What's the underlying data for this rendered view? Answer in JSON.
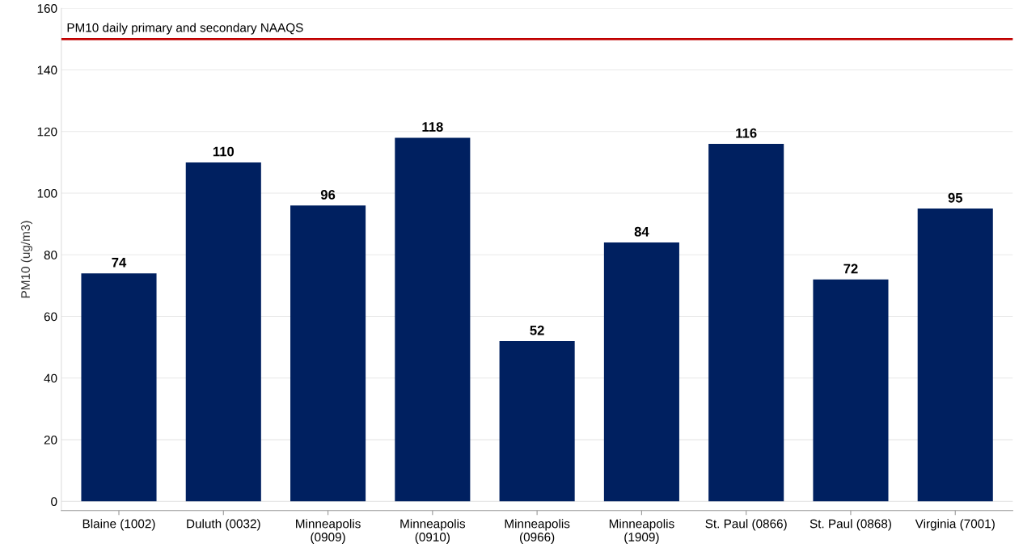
{
  "chart_data": {
    "type": "bar",
    "ylabel": "PM10 (ug/m3)",
    "categories": [
      "Blaine (1002)",
      "Duluth (0032)",
      "Minneapolis\n(0909)",
      "Minneapolis\n(0910)",
      "Minneapolis\n(0966)",
      "Minneapolis\n(1909)",
      "St. Paul (0866)",
      "St. Paul (0868)",
      "Virginia (7001)"
    ],
    "values": [
      74,
      110,
      96,
      118,
      52,
      84,
      116,
      72,
      95
    ],
    "color": "#002060",
    "ylim": [
      -3,
      160
    ],
    "yticks": [
      0,
      20,
      40,
      60,
      80,
      100,
      120,
      140,
      160
    ],
    "grid": "y",
    "data_labels": true,
    "ref_lines": [
      {
        "axis": "y",
        "value": 150,
        "label": "PM10 daily primary and secondary NAAQS",
        "color": "#c00000"
      }
    ]
  }
}
